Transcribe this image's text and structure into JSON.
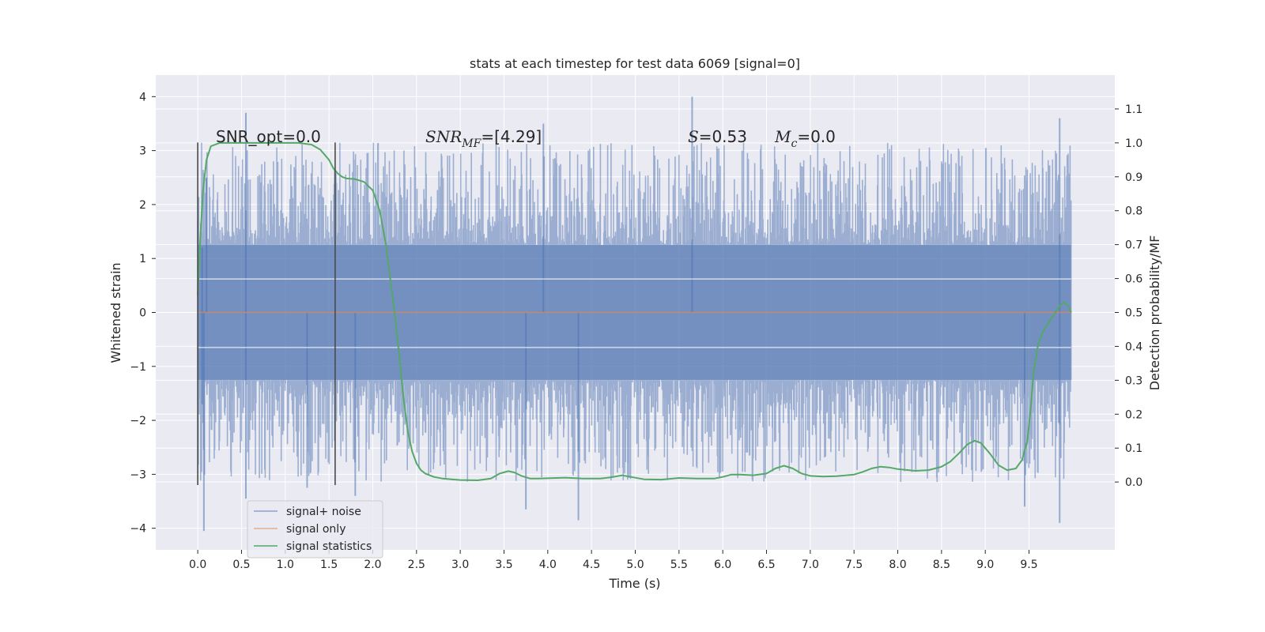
{
  "chart_data": {
    "type": "line",
    "title": "stats at each timestep for test data 6069 [signal=0]",
    "xlabel": "Time (s)",
    "ylabel": "Whitened strain",
    "ylabel_right": "Detection probability/MF",
    "xlim": [
      -0.48,
      10.48
    ],
    "ylim": [
      -4.4,
      4.4
    ],
    "ylim_right": [
      -0.2,
      1.2
    ],
    "x_ticks": [
      "0.0",
      "0.5",
      "1.0",
      "1.5",
      "2.0",
      "2.5",
      "3.0",
      "3.5",
      "4.0",
      "4.5",
      "5.0",
      "5.5",
      "6.0",
      "6.5",
      "7.0",
      "7.5",
      "8.0",
      "8.5",
      "9.0",
      "9.5"
    ],
    "x_tick_values": [
      0.0,
      0.5,
      1.0,
      1.5,
      2.0,
      2.5,
      3.0,
      3.5,
      4.0,
      4.5,
      5.0,
      5.5,
      6.0,
      6.5,
      7.0,
      7.5,
      8.0,
      8.5,
      9.0,
      9.5
    ],
    "y_ticks": [
      "−4",
      "−3",
      "−2",
      "−1",
      "0",
      "1",
      "2",
      "3",
      "4"
    ],
    "y_tick_values": [
      -4,
      -3,
      -2,
      -1,
      0,
      1,
      2,
      3,
      4
    ],
    "y2_ticks": [
      "0.0",
      "0.1",
      "0.2",
      "0.3",
      "0.4",
      "0.5",
      "0.6",
      "0.7",
      "0.8",
      "0.9",
      "1.0",
      "1.1"
    ],
    "y2_tick_values": [
      0.0,
      0.1,
      0.2,
      0.3,
      0.4,
      0.5,
      0.6,
      0.7,
      0.8,
      0.9,
      1.0,
      1.1
    ],
    "grid": true,
    "legend_position": "lower-left",
    "series": [
      {
        "name": "signal+ noise",
        "color": "#4c72b0",
        "kind": "noise",
        "x_range": [
          0.0,
          9.98
        ],
        "spread_y": [
          -1.25,
          1.25
        ],
        "peaks": [
          {
            "x": 0.05,
            "y": 1.2
          },
          {
            "x": 0.05,
            "y": -1.7
          },
          {
            "x": 0.07,
            "y": -4.05
          },
          {
            "x": 0.1,
            "y": 2.5
          },
          {
            "x": 0.55,
            "y": 3.7
          },
          {
            "x": 0.55,
            "y": -3.45
          },
          {
            "x": 1.25,
            "y": -3.25
          },
          {
            "x": 1.8,
            "y": -3.4
          },
          {
            "x": 3.75,
            "y": -3.65
          },
          {
            "x": 3.95,
            "y": 3.5
          },
          {
            "x": 4.35,
            "y": -3.85
          },
          {
            "x": 5.65,
            "y": 4.0
          },
          {
            "x": 9.45,
            "y": -3.6
          },
          {
            "x": 9.85,
            "y": 3.6
          },
          {
            "x": 9.85,
            "y": -3.9
          }
        ]
      },
      {
        "name": "signal only",
        "color": "#dd8452",
        "kind": "line",
        "points": [
          [
            0.0,
            0.0
          ],
          [
            9.98,
            0.0
          ]
        ]
      },
      {
        "name": "signal statistics",
        "color": "#55a868",
        "kind": "line",
        "axis": "right",
        "points": [
          [
            0.0,
            0.55
          ],
          [
            0.03,
            0.72
          ],
          [
            0.06,
            0.86
          ],
          [
            0.1,
            0.95
          ],
          [
            0.15,
            0.99
          ],
          [
            0.25,
            1.0
          ],
          [
            0.5,
            1.0
          ],
          [
            0.8,
            1.0
          ],
          [
            1.0,
            1.0
          ],
          [
            1.15,
            1.0
          ],
          [
            1.3,
            0.995
          ],
          [
            1.4,
            0.98
          ],
          [
            1.5,
            0.95
          ],
          [
            1.55,
            0.925
          ],
          [
            1.6,
            0.91
          ],
          [
            1.65,
            0.9
          ],
          [
            1.7,
            0.895
          ],
          [
            1.8,
            0.893
          ],
          [
            1.9,
            0.885
          ],
          [
            2.0,
            0.86
          ],
          [
            2.08,
            0.8
          ],
          [
            2.15,
            0.7
          ],
          [
            2.2,
            0.6
          ],
          [
            2.25,
            0.5
          ],
          [
            2.3,
            0.38
          ],
          [
            2.35,
            0.25
          ],
          [
            2.4,
            0.15
          ],
          [
            2.45,
            0.09
          ],
          [
            2.5,
            0.055
          ],
          [
            2.55,
            0.035
          ],
          [
            2.6,
            0.025
          ],
          [
            2.7,
            0.015
          ],
          [
            2.8,
            0.01
          ],
          [
            2.9,
            0.008
          ],
          [
            3.0,
            0.006
          ],
          [
            3.2,
            0.005
          ],
          [
            3.35,
            0.01
          ],
          [
            3.45,
            0.025
          ],
          [
            3.55,
            0.032
          ],
          [
            3.62,
            0.028
          ],
          [
            3.7,
            0.018
          ],
          [
            3.8,
            0.01
          ],
          [
            3.9,
            0.01
          ],
          [
            4.0,
            0.011
          ],
          [
            4.2,
            0.013
          ],
          [
            4.4,
            0.01
          ],
          [
            4.6,
            0.01
          ],
          [
            4.75,
            0.015
          ],
          [
            4.85,
            0.02
          ],
          [
            4.95,
            0.015
          ],
          [
            5.1,
            0.008
          ],
          [
            5.3,
            0.007
          ],
          [
            5.5,
            0.012
          ],
          [
            5.7,
            0.01
          ],
          [
            5.9,
            0.01
          ],
          [
            6.0,
            0.015
          ],
          [
            6.1,
            0.022
          ],
          [
            6.2,
            0.022
          ],
          [
            6.35,
            0.02
          ],
          [
            6.5,
            0.025
          ],
          [
            6.6,
            0.04
          ],
          [
            6.7,
            0.048
          ],
          [
            6.8,
            0.04
          ],
          [
            6.9,
            0.025
          ],
          [
            7.0,
            0.018
          ],
          [
            7.15,
            0.016
          ],
          [
            7.3,
            0.017
          ],
          [
            7.5,
            0.022
          ],
          [
            7.6,
            0.03
          ],
          [
            7.7,
            0.04
          ],
          [
            7.8,
            0.045
          ],
          [
            7.9,
            0.043
          ],
          [
            8.0,
            0.038
          ],
          [
            8.2,
            0.033
          ],
          [
            8.35,
            0.035
          ],
          [
            8.5,
            0.045
          ],
          [
            8.6,
            0.06
          ],
          [
            8.7,
            0.085
          ],
          [
            8.8,
            0.112
          ],
          [
            8.88,
            0.122
          ],
          [
            8.95,
            0.115
          ],
          [
            9.05,
            0.085
          ],
          [
            9.15,
            0.05
          ],
          [
            9.25,
            0.035
          ],
          [
            9.35,
            0.04
          ],
          [
            9.42,
            0.065
          ],
          [
            9.48,
            0.12
          ],
          [
            9.52,
            0.22
          ],
          [
            9.55,
            0.32
          ],
          [
            9.6,
            0.4
          ],
          [
            9.65,
            0.44
          ],
          [
            9.7,
            0.46
          ],
          [
            9.75,
            0.48
          ],
          [
            9.8,
            0.5
          ],
          [
            9.85,
            0.52
          ],
          [
            9.9,
            0.53
          ],
          [
            9.95,
            0.52
          ],
          [
            9.98,
            0.5
          ]
        ]
      }
    ],
    "vlines": [
      0.0,
      1.57
    ],
    "vline_color": "#4a4a4a",
    "vline_range": [
      -3.2,
      3.15
    ],
    "annotations": {
      "snr_opt": "SNR_opt=0.0",
      "snr_mf_prefix": "SNR",
      "snr_mf_sub": "MF",
      "snr_mf_value": "=[4.29]",
      "s_symbol": "S",
      "s_value": "=0.53",
      "mc_symbol": "M",
      "mc_sub": "c",
      "mc_value": "=0.0"
    },
    "colors": {
      "plot_bg": "#eaeaf2",
      "grid": "#ffffff"
    }
  }
}
